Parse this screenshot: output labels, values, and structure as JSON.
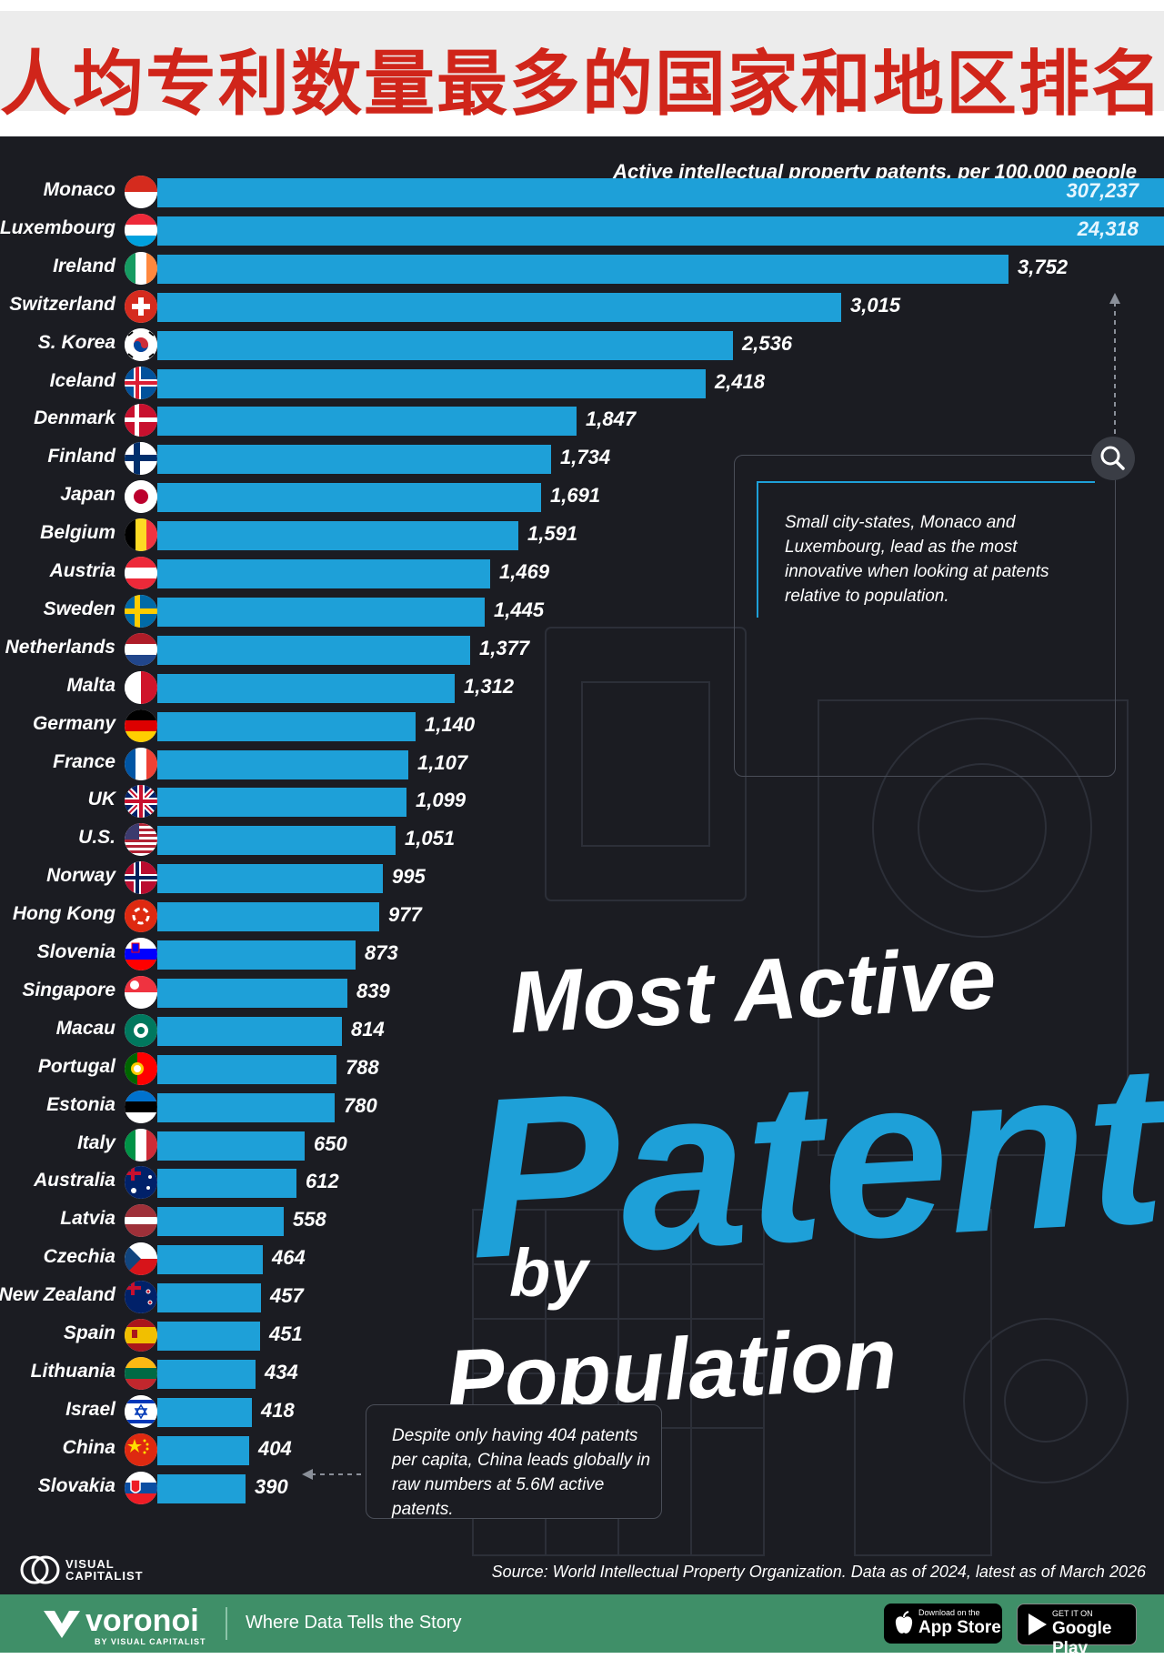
{
  "banner": {
    "title": "人均专利数量最多的国家和地区排名"
  },
  "chart_data": {
    "type": "bar",
    "orientation": "horizontal",
    "title": "Most Active Patents by Population",
    "title_parts": [
      "Most Active",
      "Patents",
      "by",
      "Population"
    ],
    "subtitle": "Active intellectual property patents, per 100,000 people",
    "unit": "patents per 100,000 people",
    "axis_break_note": "bars for Monaco and Luxembourg are truncated",
    "rows": [
      {
        "name": "Monaco",
        "value": 307237,
        "label": "307,237",
        "flag": "monaco"
      },
      {
        "name": "Luxembourg",
        "value": 24318,
        "label": "24,318",
        "flag": "luxembourg"
      },
      {
        "name": "Ireland",
        "value": 3752,
        "label": "3,752",
        "flag": "ireland"
      },
      {
        "name": "Switzerland",
        "value": 3015,
        "label": "3,015",
        "flag": "switzerland"
      },
      {
        "name": "S. Korea",
        "value": 2536,
        "label": "2,536",
        "flag": "south-korea"
      },
      {
        "name": "Iceland",
        "value": 2418,
        "label": "2,418",
        "flag": "iceland"
      },
      {
        "name": "Denmark",
        "value": 1847,
        "label": "1,847",
        "flag": "denmark"
      },
      {
        "name": "Finland",
        "value": 1734,
        "label": "1,734",
        "flag": "finland"
      },
      {
        "name": "Japan",
        "value": 1691,
        "label": "1,691",
        "flag": "japan"
      },
      {
        "name": "Belgium",
        "value": 1591,
        "label": "1,591",
        "flag": "belgium"
      },
      {
        "name": "Austria",
        "value": 1469,
        "label": "1,469",
        "flag": "austria"
      },
      {
        "name": "Sweden",
        "value": 1445,
        "label": "1,445",
        "flag": "sweden"
      },
      {
        "name": "Netherlands",
        "value": 1377,
        "label": "1,377",
        "flag": "netherlands"
      },
      {
        "name": "Malta",
        "value": 1312,
        "label": "1,312",
        "flag": "malta"
      },
      {
        "name": "Germany",
        "value": 1140,
        "label": "1,140",
        "flag": "germany"
      },
      {
        "name": "France",
        "value": 1107,
        "label": "1,107",
        "flag": "france"
      },
      {
        "name": "UK",
        "value": 1099,
        "label": "1,099",
        "flag": "uk"
      },
      {
        "name": "U.S.",
        "value": 1051,
        "label": "1,051",
        "flag": "usa"
      },
      {
        "name": "Norway",
        "value": 995,
        "label": "995",
        "flag": "norway"
      },
      {
        "name": "Hong Kong",
        "value": 977,
        "label": "977",
        "flag": "hong-kong"
      },
      {
        "name": "Slovenia",
        "value": 873,
        "label": "873",
        "flag": "slovenia"
      },
      {
        "name": "Singapore",
        "value": 839,
        "label": "839",
        "flag": "singapore"
      },
      {
        "name": "Macau",
        "value": 814,
        "label": "814",
        "flag": "macau"
      },
      {
        "name": "Portugal",
        "value": 788,
        "label": "788",
        "flag": "portugal"
      },
      {
        "name": "Estonia",
        "value": 780,
        "label": "780",
        "flag": "estonia"
      },
      {
        "name": "Italy",
        "value": 650,
        "label": "650",
        "flag": "italy"
      },
      {
        "name": "Australia",
        "value": 612,
        "label": "612",
        "flag": "australia"
      },
      {
        "name": "Latvia",
        "value": 558,
        "label": "558",
        "flag": "latvia"
      },
      {
        "name": "Czechia",
        "value": 464,
        "label": "464",
        "flag": "czechia"
      },
      {
        "name": "New Zealand",
        "value": 457,
        "label": "457",
        "flag": "new-zealand"
      },
      {
        "name": "Spain",
        "value": 451,
        "label": "451",
        "flag": "spain"
      },
      {
        "name": "Lithuania",
        "value": 434,
        "label": "434",
        "flag": "lithuania"
      },
      {
        "name": "Israel",
        "value": 418,
        "label": "418",
        "flag": "israel"
      },
      {
        "name": "China",
        "value": 404,
        "label": "404",
        "flag": "china"
      },
      {
        "name": "Slovakia",
        "value": 390,
        "label": "390",
        "flag": "slovakia"
      }
    ],
    "annotations": [
      "Small city-states, Monaco and Luxembourg, lead as the most innovative when looking at patents relative to population.",
      "Despite only having 404 patents per capita, China leads globally in raw numbers at 5.6M active patents."
    ],
    "source": "Source: World Intellectual Property Organization. Data as of 2024, latest as of March 2026"
  },
  "colors": {
    "bar": "#1ea0d8",
    "panel_bg": "#1b1c22",
    "banner_text": "#d0251a",
    "footer_bg": "#3f8f68"
  },
  "branding": {
    "vc_line1": "VISUAL",
    "vc_line2": "CAPITALIST",
    "voronoi": "voronoi",
    "voronoi_sub": "BY VISUAL CAPITALIST",
    "tagline": "Where Data Tells the Story",
    "appstore_small": "Download on the",
    "appstore_big": "App Store",
    "googleplay_small": "GET IT ON",
    "googleplay_big": "Google Play"
  }
}
